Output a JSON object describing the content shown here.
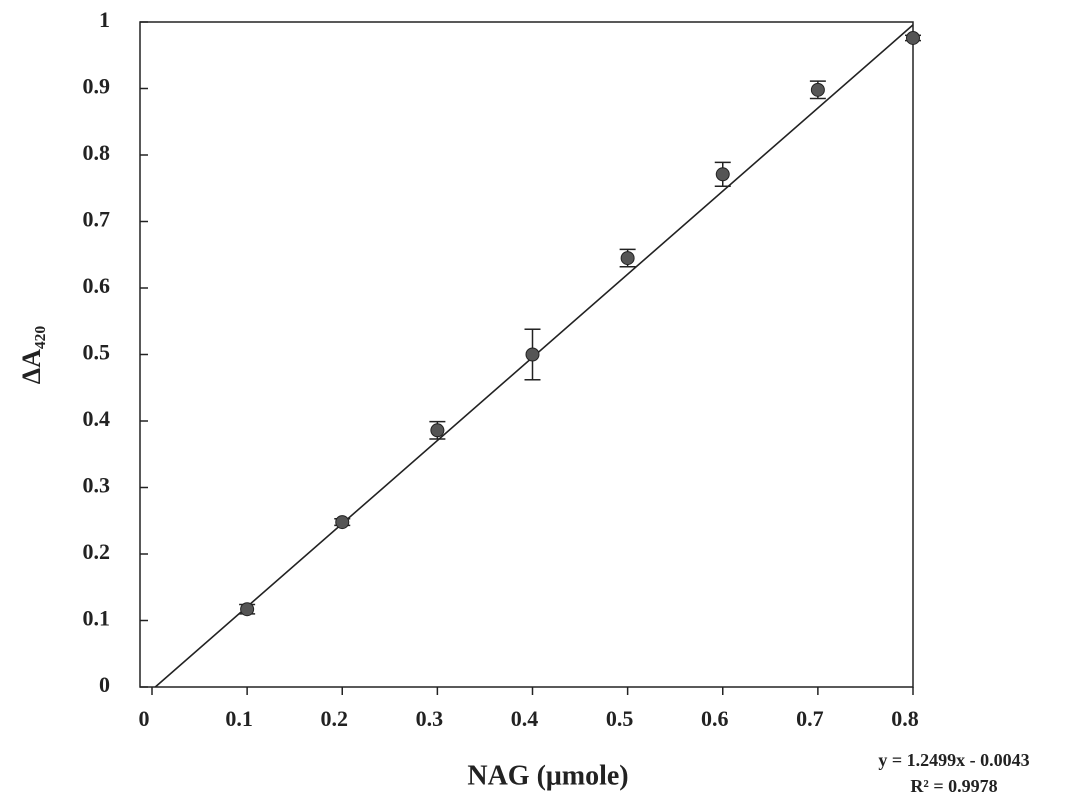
{
  "chart_data": {
    "type": "scatter",
    "x_label": "NAG (μmole)",
    "y_label": "ΔA₄₂₀",
    "x": [
      0.1,
      0.2,
      0.3,
      0.4,
      0.5,
      0.6,
      0.7,
      0.8
    ],
    "values": [
      0.117,
      0.248,
      0.386,
      0.5,
      0.645,
      0.771,
      0.898,
      0.976
    ],
    "errors": [
      0.007,
      0.005,
      0.013,
      0.038,
      0.013,
      0.018,
      0.013,
      0.004
    ],
    "color": "#555555",
    "xlim": [
      0,
      0.8
    ],
    "ylim": [
      0,
      1
    ],
    "xticks": [
      0,
      0.1,
      0.2,
      0.3,
      0.4,
      0.5,
      0.6,
      0.7,
      0.8
    ],
    "yticks": [
      0,
      0.1,
      0.2,
      0.3,
      0.4,
      0.5,
      0.6,
      0.7,
      0.8,
      0.9,
      1
    ],
    "trendline": {
      "slope": 1.2499,
      "intercept": -0.0043,
      "equation": "y = 1.2499x - 0.0043",
      "r2": "R² = 0.9978"
    }
  }
}
